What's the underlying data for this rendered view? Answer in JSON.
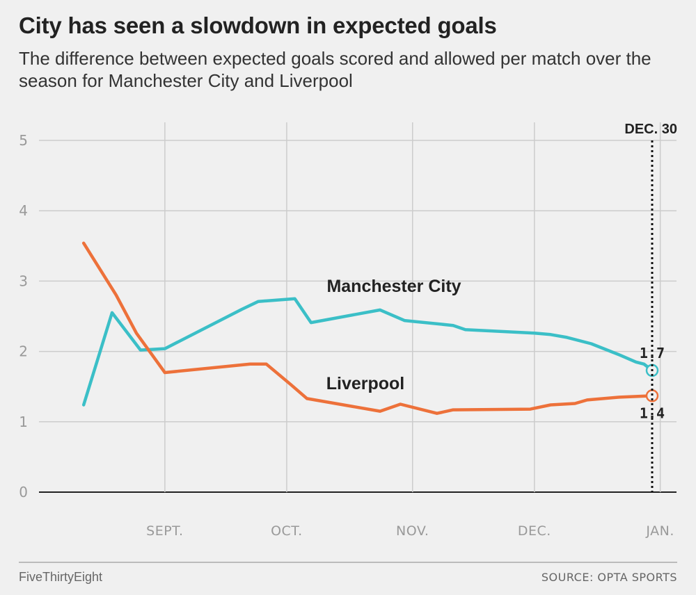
{
  "header": {
    "title": "City has seen a slowdown in expected goals",
    "subtitle": "The difference between expected goals scored and allowed per match over the season for Manchester City and Liverpool"
  },
  "footer": {
    "brand": "FiveThirtyEight",
    "source": "SOURCE: OPTA SPORTS"
  },
  "colors": {
    "city": "#3bbfc7",
    "liverpool": "#ed713a",
    "grid": "#cccccc",
    "baseline": "#222222"
  },
  "chart_data": {
    "type": "line",
    "title": "City has seen a slowdown in expected goals",
    "subtitle": "The difference between expected goals scored and allowed per match over the season for Manchester City and Liverpool",
    "xlabel": "",
    "ylabel": "",
    "ylim": [
      0,
      5
    ],
    "yticks": [
      "0",
      "1",
      "2",
      "3",
      "4",
      "5"
    ],
    "xlim": [
      "2018-08-01",
      "2019-01-05"
    ],
    "xticks": [
      {
        "date": "2018-09-01",
        "label": "SEPT."
      },
      {
        "date": "2018-10-01",
        "label": "OCT."
      },
      {
        "date": "2018-11-01",
        "label": "NOV."
      },
      {
        "date": "2018-12-01",
        "label": "DEC."
      },
      {
        "date": "2019-01-01",
        "label": "JAN."
      }
    ],
    "grid": true,
    "marker": {
      "date": "2018-12-30",
      "label": "DEC. 30"
    },
    "series": [
      {
        "name": "Manchester City",
        "color": "#3bbfc7",
        "end_label": "1.7",
        "points": [
          {
            "date": "2018-08-12",
            "value": 1.24
          },
          {
            "date": "2018-08-19",
            "value": 2.55
          },
          {
            "date": "2018-08-26",
            "value": 2.02
          },
          {
            "date": "2018-09-01",
            "value": 2.04
          },
          {
            "date": "2018-09-20",
            "value": 2.6
          },
          {
            "date": "2018-09-24",
            "value": 2.71
          },
          {
            "date": "2018-10-03",
            "value": 2.75
          },
          {
            "date": "2018-10-07",
            "value": 2.41
          },
          {
            "date": "2018-10-24",
            "value": 2.59
          },
          {
            "date": "2018-10-30",
            "value": 2.44
          },
          {
            "date": "2018-11-11",
            "value": 2.37
          },
          {
            "date": "2018-11-14",
            "value": 2.31
          },
          {
            "date": "2018-12-01",
            "value": 2.26
          },
          {
            "date": "2018-12-05",
            "value": 2.24
          },
          {
            "date": "2018-12-09",
            "value": 2.2
          },
          {
            "date": "2018-12-15",
            "value": 2.11
          },
          {
            "date": "2018-12-22",
            "value": 1.95
          },
          {
            "date": "2018-12-26",
            "value": 1.85
          },
          {
            "date": "2018-12-28",
            "value": 1.82
          },
          {
            "date": "2018-12-30",
            "value": 1.73
          }
        ]
      },
      {
        "name": "Liverpool",
        "color": "#ed713a",
        "end_label": "1.4",
        "points": [
          {
            "date": "2018-08-12",
            "value": 3.54
          },
          {
            "date": "2018-08-20",
            "value": 2.8
          },
          {
            "date": "2018-08-25",
            "value": 2.26
          },
          {
            "date": "2018-09-01",
            "value": 1.7
          },
          {
            "date": "2018-09-22",
            "value": 1.82
          },
          {
            "date": "2018-09-26",
            "value": 1.82
          },
          {
            "date": "2018-10-02",
            "value": 1.53
          },
          {
            "date": "2018-10-06",
            "value": 1.33
          },
          {
            "date": "2018-10-24",
            "value": 1.15
          },
          {
            "date": "2018-10-29",
            "value": 1.25
          },
          {
            "date": "2018-11-07",
            "value": 1.12
          },
          {
            "date": "2018-11-11",
            "value": 1.17
          },
          {
            "date": "2018-11-30",
            "value": 1.18
          },
          {
            "date": "2018-12-05",
            "value": 1.24
          },
          {
            "date": "2018-12-11",
            "value": 1.26
          },
          {
            "date": "2018-12-14",
            "value": 1.31
          },
          {
            "date": "2018-12-22",
            "value": 1.35
          },
          {
            "date": "2018-12-26",
            "value": 1.36
          },
          {
            "date": "2018-12-30",
            "value": 1.37
          }
        ]
      }
    ],
    "annotations": [
      {
        "text": "Manchester City",
        "series": "Manchester City"
      },
      {
        "text": "Liverpool",
        "series": "Liverpool"
      }
    ]
  }
}
